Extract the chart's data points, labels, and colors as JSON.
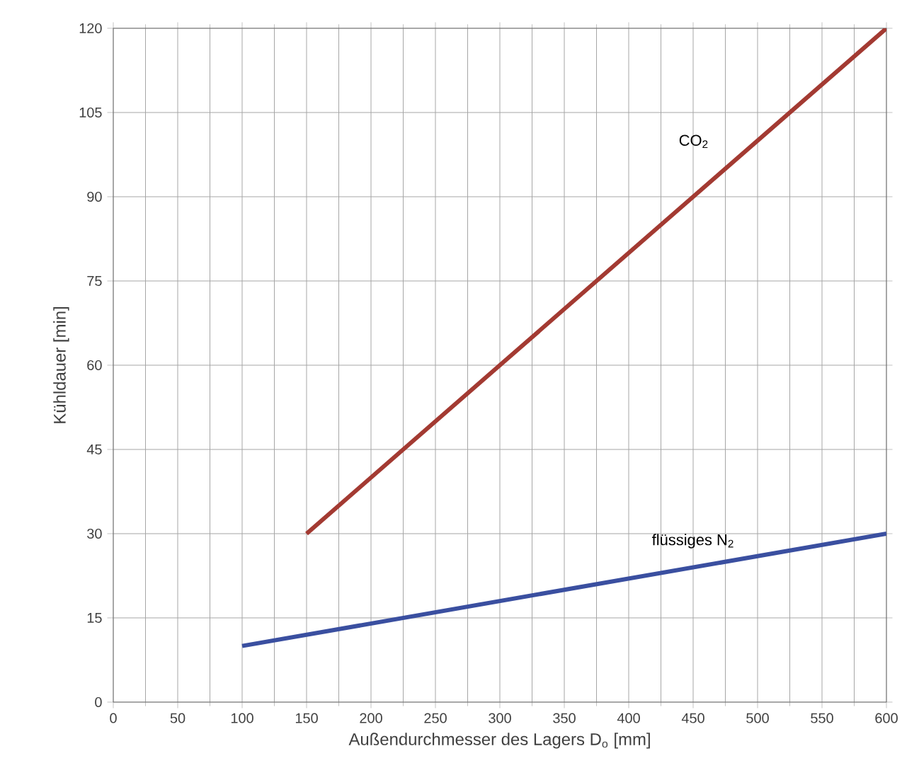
{
  "chart_data": {
    "type": "line",
    "xlabel": "Außendurchmesser des Lagers D$_{o}$ [mm]",
    "ylabel": "Kühldauer [min]",
    "xlim": [
      0,
      600
    ],
    "ylim": [
      0,
      120
    ],
    "xticks": [
      0,
      50,
      100,
      150,
      200,
      250,
      300,
      350,
      400,
      450,
      500,
      550,
      600
    ],
    "yticks": [
      0,
      15,
      30,
      45,
      60,
      75,
      90,
      105,
      120
    ],
    "grid": true,
    "marker": "none",
    "line_style": "solid",
    "series": [
      {
        "name": "CO$_{2}$",
        "color": "#a33a32",
        "x": [
          150,
          600
        ],
        "values": [
          30,
          120
        ]
      },
      {
        "name": "flüssiges N$_{2}$",
        "color": "#3a4fa0",
        "x": [
          100,
          600
        ],
        "values": [
          10,
          30
        ]
      }
    ]
  }
}
